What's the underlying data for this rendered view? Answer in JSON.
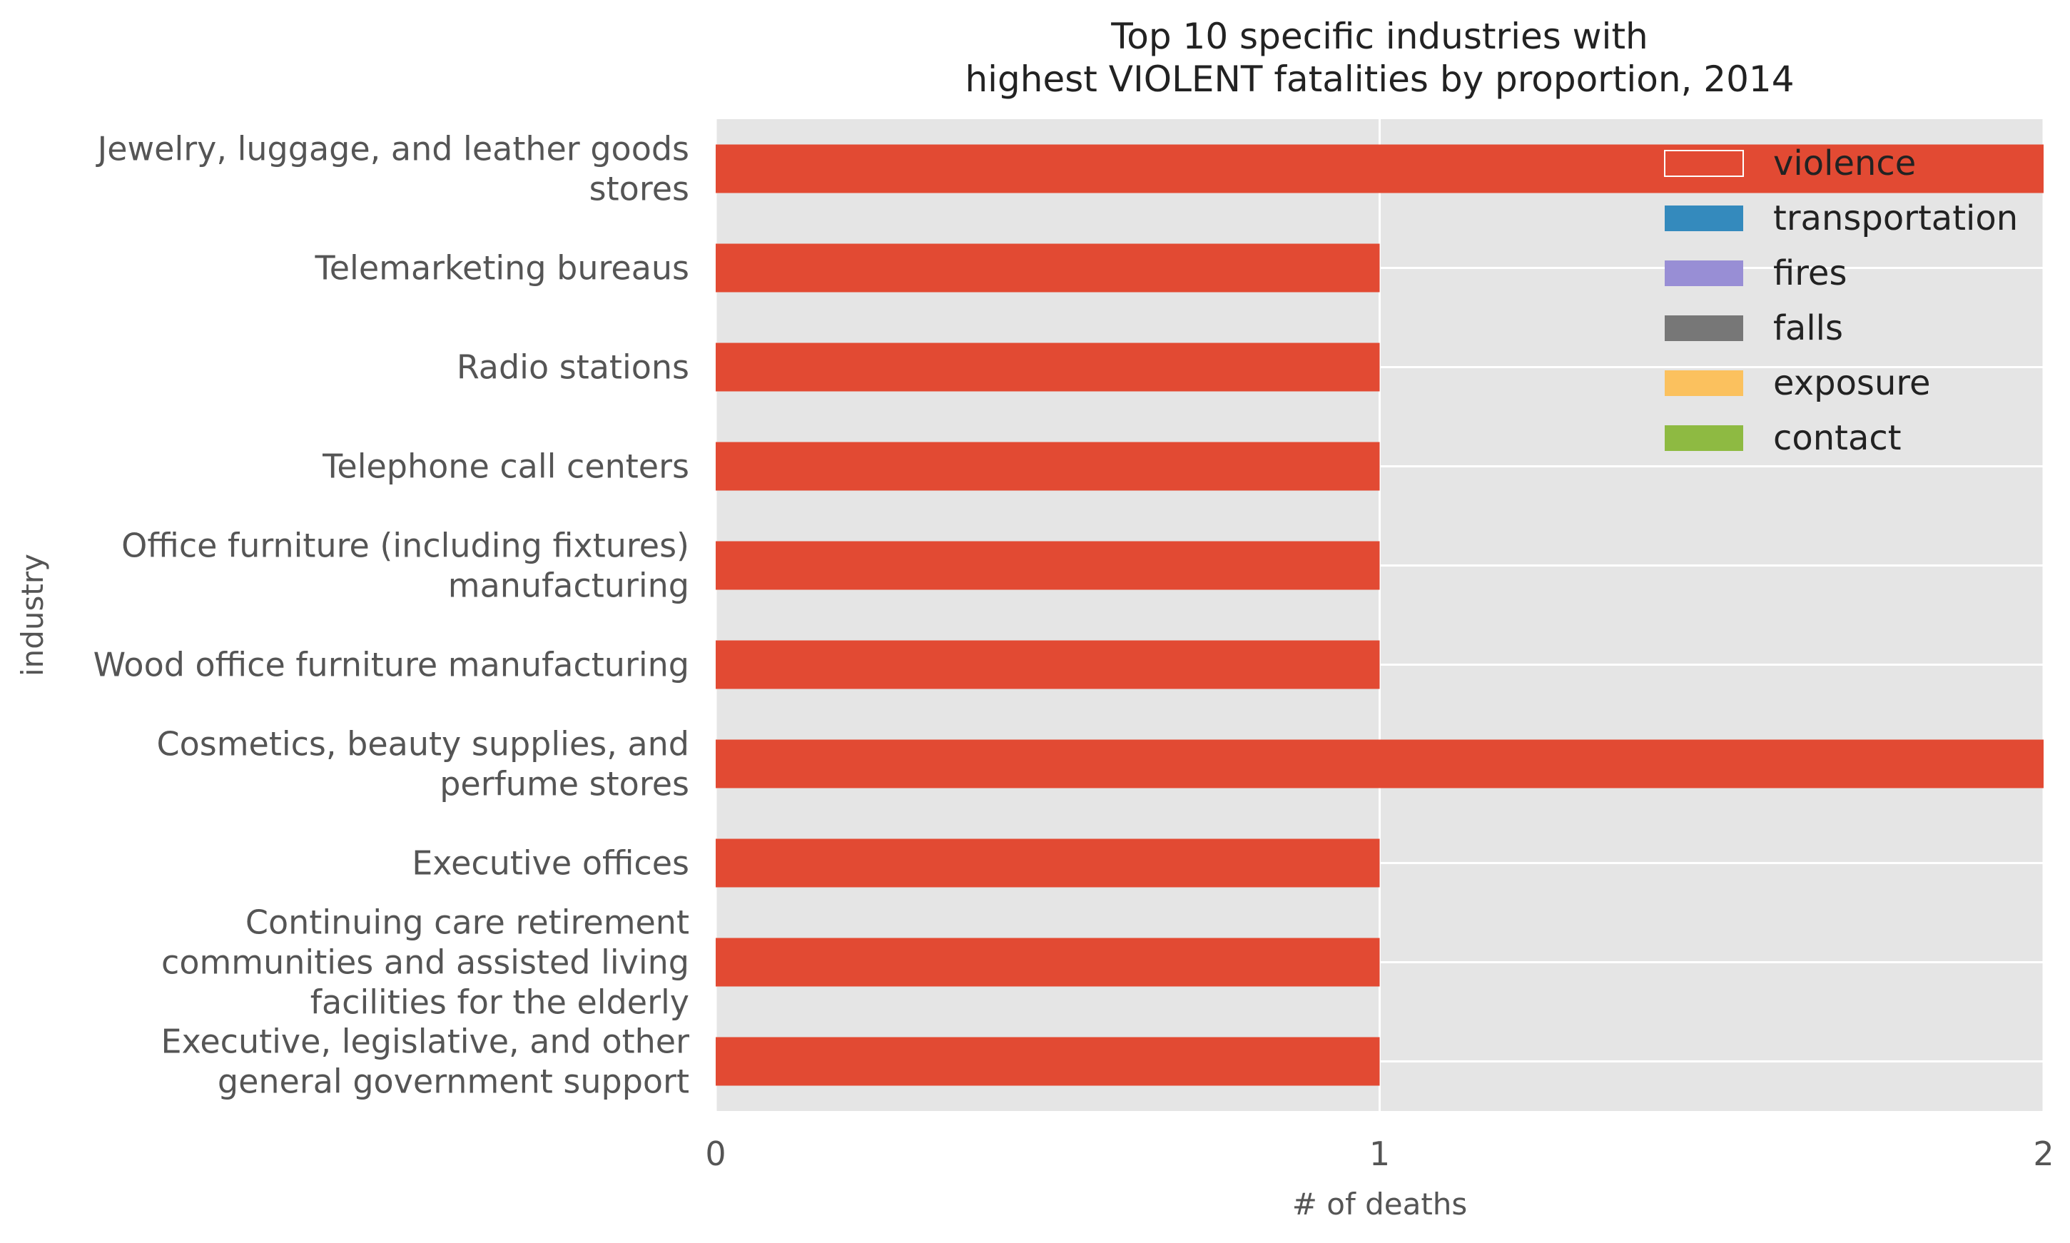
{
  "chart_data": {
    "type": "bar",
    "orientation": "horizontal",
    "stacked": true,
    "title": "Top 10 specific industries with\nhighest VIOLENT fatalities by proportion, 2014",
    "xlabel": "# of deaths",
    "ylabel": "industry",
    "xlim": [
      0,
      2
    ],
    "xticks": [
      0,
      1,
      2
    ],
    "grid": true,
    "legend_position": "top-right",
    "categories": [
      "Jewelry, luggage, and leather goods\nstores",
      "Telemarketing bureaus",
      "Radio stations",
      "Telephone call centers",
      "Office furniture (including fixtures)\nmanufacturing",
      "Wood office furniture manufacturing",
      "Cosmetics, beauty supplies, and\nperfume stores",
      "Executive offices",
      "Continuing care retirement\ncommunities and assisted living\nfacilities for the elderly",
      "Executive, legislative, and other\ngeneral government support"
    ],
    "series": [
      {
        "name": "violence",
        "color": "#E24A33",
        "values": [
          2,
          1,
          1,
          1,
          1,
          1,
          2,
          1,
          1,
          1
        ]
      },
      {
        "name": "transportation",
        "color": "#348ABD",
        "values": [
          0,
          0,
          0,
          0,
          0,
          0,
          0,
          0,
          0,
          0
        ]
      },
      {
        "name": "fires",
        "color": "#988ED5",
        "values": [
          0,
          0,
          0,
          0,
          0,
          0,
          0,
          0,
          0,
          0
        ]
      },
      {
        "name": "falls",
        "color": "#777777",
        "values": [
          0,
          0,
          0,
          0,
          0,
          0,
          0,
          0,
          0,
          0
        ]
      },
      {
        "name": "exposure",
        "color": "#FBC15E",
        "values": [
          0,
          0,
          0,
          0,
          0,
          0,
          0,
          0,
          0,
          0
        ]
      },
      {
        "name": "contact",
        "color": "#8EBA42",
        "values": [
          0,
          0,
          0,
          0,
          0,
          0,
          0,
          0,
          0,
          0
        ]
      }
    ],
    "colors": {
      "plot_background": "#E5E5E5",
      "grid": "#FFFFFF",
      "text": "#555555",
      "title": "#222222"
    }
  }
}
